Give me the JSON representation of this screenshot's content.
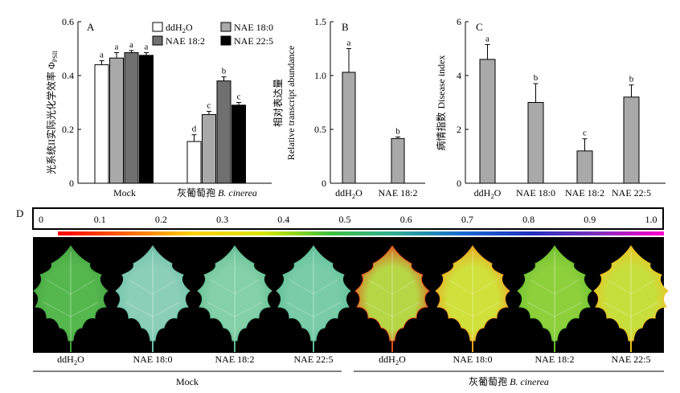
{
  "panels": {
    "A": {
      "letter": "A",
      "ylabel_cn": "光系统II实际光化学效率",
      "ylabel_symbol": "ΦPSII",
      "legend": [
        "ddH2O",
        "NAE 18:0",
        "NAE 18:2",
        "NAE 22:5"
      ],
      "groups": [
        "Mock",
        "灰葡萄孢 B. cinerea"
      ],
      "yticks": [
        "0",
        "0.2",
        "0.4",
        "0.6"
      ]
    },
    "B": {
      "letter": "B",
      "ylabel_cn": "相对表达量",
      "ylabel_en": "Relative transcript abundance",
      "yticks": [
        "0",
        "0.5",
        "1.0",
        "1.5"
      ]
    },
    "C": {
      "letter": "C",
      "ylabel_cn": "病情指数",
      "ylabel_en": "Disease index",
      "yticks": [
        "0",
        "2",
        "4",
        "6"
      ]
    },
    "D": {
      "letter": "D",
      "scale_ticks": [
        "0",
        "0.1",
        "0.2",
        "0.3",
        "0.4",
        "0.5",
        "0.6",
        "0.7",
        "0.8",
        "0.9",
        "1.0"
      ],
      "leaf_labels": [
        "ddH2O",
        "NAE 18:0",
        "NAE 18:2",
        "NAE 22:5",
        "ddH2O",
        "NAE 18:0",
        "NAE 18:2",
        "NAE 22:5"
      ],
      "group_labels": [
        "Mock",
        "灰葡萄孢 B. cinerea"
      ],
      "leaf_colors": [
        {
          "base": "#55b84e",
          "edge": "#45a040"
        },
        {
          "base": "#8ccfb8",
          "edge": "#6dbfa8"
        },
        {
          "base": "#84d0a8",
          "edge": "#62bc90"
        },
        {
          "base": "#7acca8",
          "edge": "#5dbd95"
        },
        {
          "base": "#b6d645",
          "edge": "#e2501c"
        },
        {
          "base": "#cfe13a",
          "edge": "#f0a020"
        },
        {
          "base": "#8ecf3c",
          "edge": "#6cbf30"
        },
        {
          "base": "#c8de3c",
          "edge": "#f0c020"
        }
      ]
    }
  },
  "chart_data": [
    {
      "type": "bar",
      "panel": "A",
      "ylabel": "光系统II实际光化学效率 ΦPSII",
      "ylim": [
        0,
        0.6
      ],
      "categories": [
        "Mock",
        "灰葡萄孢 B. cinerea"
      ],
      "series": [
        {
          "name": "ddH2O",
          "color": "#ffffff",
          "values": [
            0.44,
            0.155
          ],
          "errors": [
            0.015,
            0.025
          ],
          "letters": [
            "a",
            "d"
          ]
        },
        {
          "name": "NAE 18:0",
          "color": "#a9a9a9",
          "values": [
            0.465,
            0.255
          ],
          "errors": [
            0.02,
            0.012
          ],
          "letters": [
            "a",
            "c"
          ]
        },
        {
          "name": "NAE 18:2",
          "color": "#707070",
          "values": [
            0.485,
            0.38
          ],
          "errors": [
            0.008,
            0.015
          ],
          "letters": [
            "a",
            "b"
          ]
        },
        {
          "name": "NAE 22:5",
          "color": "#000000",
          "values": [
            0.475,
            0.29
          ],
          "errors": [
            0.01,
            0.01
          ],
          "letters": [
            "a",
            "c"
          ]
        }
      ]
    },
    {
      "type": "bar",
      "panel": "B",
      "ylabel": "相对表达量 Relative transcript abundance",
      "ylim": [
        0,
        1.5
      ],
      "categories": [
        "ddH2O",
        "NAE 18:2"
      ],
      "values": [
        1.03,
        0.415
      ],
      "errors": [
        0.22,
        0.015
      ],
      "letters": [
        "a",
        "b"
      ],
      "color": "#a9a9a9"
    },
    {
      "type": "bar",
      "panel": "C",
      "ylabel": "病情指数 Disease index",
      "ylim": [
        0,
        6
      ],
      "categories": [
        "ddH2O",
        "NAE 18:0",
        "NAE 18:2",
        "NAE 22:5"
      ],
      "values": [
        4.6,
        3.0,
        1.2,
        3.2
      ],
      "errors": [
        0.55,
        0.7,
        0.45,
        0.45
      ],
      "letters": [
        "a",
        "b",
        "c",
        "b"
      ],
      "color": "#a9a9a9"
    }
  ]
}
